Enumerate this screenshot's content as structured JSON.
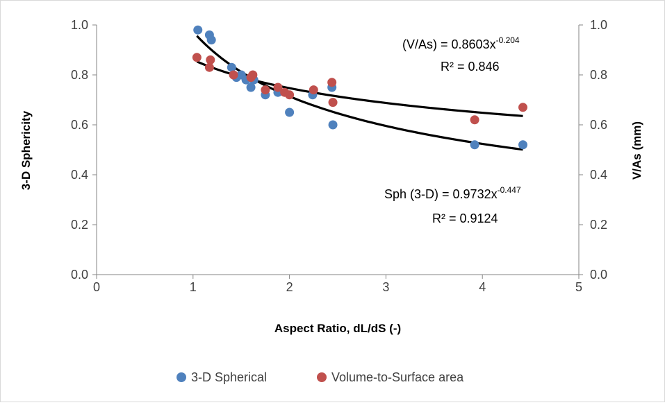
{
  "chart_data": {
    "type": "scatter",
    "xlabel": "Aspect Ratio, dL/dS (-)",
    "ylabel": "3-D Sphericity",
    "y2label": "V/As (mm)",
    "xlim": [
      0,
      5
    ],
    "ylim": [
      0,
      1
    ],
    "y2lim": [
      0,
      1
    ],
    "x_ticks": [
      "0",
      "1",
      "2",
      "3",
      "4",
      "5"
    ],
    "y_ticks": [
      "0.0",
      "0.2",
      "0.4",
      "0.6",
      "0.8",
      "1.0"
    ],
    "y2_ticks": [
      "0.0",
      "0.2",
      "0.4",
      "0.6",
      "0.8",
      "1.0"
    ],
    "grid": false,
    "legend_position": "bottom",
    "series": [
      {
        "name": "3-D Spherical",
        "axis": "left",
        "color": "#4f81bd",
        "points": [
          [
            1.05,
            0.98
          ],
          [
            1.17,
            0.96
          ],
          [
            1.19,
            0.94
          ],
          [
            1.4,
            0.83
          ],
          [
            1.45,
            0.79
          ],
          [
            1.5,
            0.8
          ],
          [
            1.55,
            0.78
          ],
          [
            1.6,
            0.75
          ],
          [
            1.63,
            0.78
          ],
          [
            1.75,
            0.72
          ],
          [
            1.88,
            0.73
          ],
          [
            2.0,
            0.65
          ],
          [
            2.24,
            0.72
          ],
          [
            2.44,
            0.75
          ],
          [
            2.45,
            0.6
          ],
          [
            3.92,
            0.52
          ],
          [
            4.42,
            0.52
          ]
        ]
      },
      {
        "name": "Volume-to-Surface area",
        "axis": "right",
        "color": "#c0504d",
        "points": [
          [
            1.04,
            0.87
          ],
          [
            1.17,
            0.83
          ],
          [
            1.18,
            0.86
          ],
          [
            1.42,
            0.8
          ],
          [
            1.6,
            0.79
          ],
          [
            1.62,
            0.8
          ],
          [
            1.75,
            0.74
          ],
          [
            1.88,
            0.75
          ],
          [
            1.95,
            0.73
          ],
          [
            2.0,
            0.72
          ],
          [
            2.25,
            0.74
          ],
          [
            2.44,
            0.77
          ],
          [
            2.45,
            0.69
          ],
          [
            3.92,
            0.62
          ],
          [
            4.42,
            0.67
          ]
        ]
      }
    ],
    "trendlines": [
      {
        "series": "Volume-to-Surface area",
        "type": "power",
        "coefficient": 0.8603,
        "exponent": -0.204,
        "x_range": [
          1.04,
          4.42
        ],
        "equation_prefix": "(V/As) = 0.8603x",
        "equation_exponent": "-0.204",
        "r2_label": "R² = 0.846"
      },
      {
        "series": "3-D Spherical",
        "type": "power",
        "coefficient": 0.9732,
        "exponent": -0.447,
        "x_range": [
          1.04,
          4.42
        ],
        "equation_prefix": "Sph (3-D) = 0.9732x",
        "equation_exponent": "-0.447",
        "r2_label": "R² = 0.9124"
      }
    ]
  }
}
